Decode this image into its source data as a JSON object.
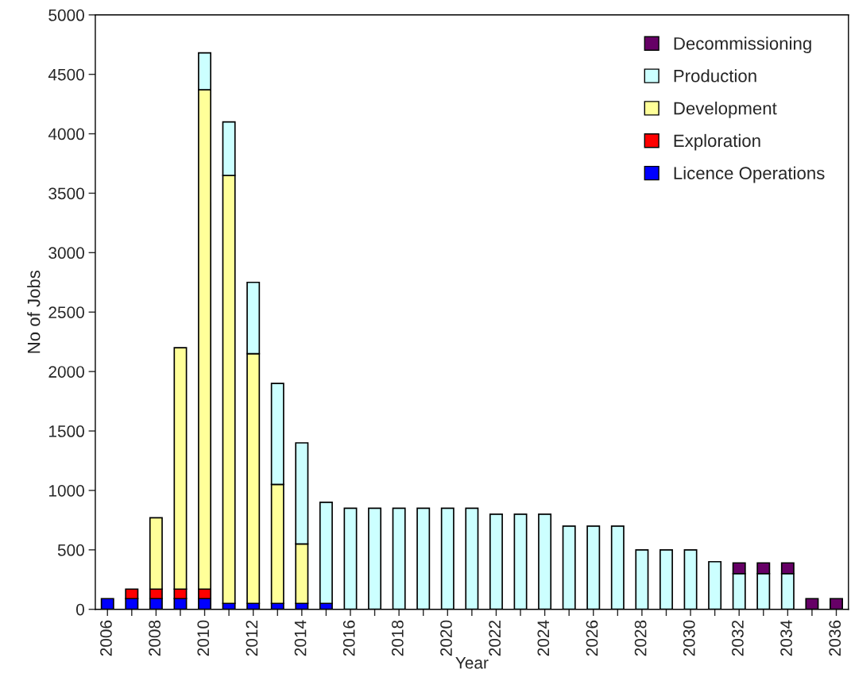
{
  "chart_data": {
    "type": "bar",
    "stacked": true,
    "xlabel": "Year",
    "ylabel": "No of Jobs",
    "categories": [
      "2006",
      null,
      "2008",
      null,
      "2010",
      null,
      "2012",
      null,
      "2014",
      null,
      "2016",
      null,
      "2018",
      null,
      "2020",
      null,
      "2022",
      null,
      "2024",
      null,
      "2026",
      null,
      "2028",
      null,
      "2030",
      null,
      "2032",
      null,
      "2034",
      null,
      "2036"
    ],
    "series": [
      {
        "name": "Licence Operations",
        "color": "#0000ff",
        "values": [
          90,
          90,
          90,
          90,
          90,
          50,
          50,
          50,
          50,
          50,
          null,
          null,
          null,
          null,
          null,
          null,
          null,
          null,
          null,
          null,
          null,
          null,
          null,
          null,
          null,
          null,
          null,
          null,
          null,
          null,
          null
        ]
      },
      {
        "name": "Exploration",
        "color": "#ff0000",
        "values": [
          null,
          80,
          80,
          80,
          80,
          null,
          null,
          null,
          null,
          null,
          null,
          null,
          null,
          null,
          null,
          null,
          null,
          null,
          null,
          null,
          null,
          null,
          null,
          null,
          null,
          null,
          null,
          null,
          null,
          null,
          null
        ]
      },
      {
        "name": "Development",
        "color": "#ffff99",
        "values": [
          null,
          null,
          600,
          2030,
          4200,
          3600,
          2100,
          1000,
          500,
          null,
          null,
          null,
          null,
          null,
          null,
          null,
          null,
          null,
          null,
          null,
          null,
          null,
          null,
          null,
          null,
          null,
          null,
          null,
          null,
          null,
          null
        ]
      },
      {
        "name": "Production",
        "color": "#ccffff",
        "values": [
          null,
          null,
          null,
          null,
          310,
          450,
          600,
          850,
          850,
          850,
          850,
          850,
          850,
          850,
          850,
          850,
          800,
          800,
          800,
          700,
          700,
          700,
          500,
          500,
          500,
          400,
          300,
          300,
          300,
          null,
          null
        ]
      },
      {
        "name": "Decommissioning",
        "color": "#660066",
        "values": [
          null,
          null,
          null,
          null,
          null,
          null,
          null,
          null,
          null,
          null,
          null,
          null,
          null,
          null,
          null,
          null,
          null,
          null,
          null,
          null,
          null,
          null,
          null,
          null,
          null,
          null,
          90,
          90,
          90,
          90,
          90
        ]
      }
    ],
    "ylim": [
      0,
      5000
    ],
    "yticks": [
      0,
      500,
      1000,
      1500,
      2000,
      2500,
      3000,
      3500,
      4000,
      4500,
      5000
    ],
    "grid": false,
    "legend": "top right"
  }
}
